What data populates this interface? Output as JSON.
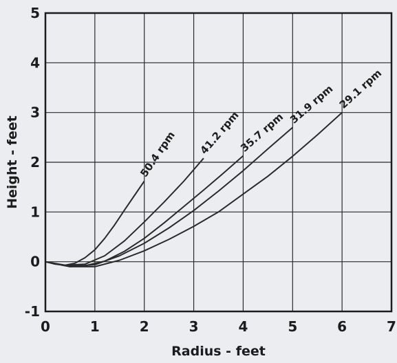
{
  "chart_data": {
    "type": "line",
    "title": "",
    "xlabel": "Radius - feet",
    "ylabel": "Height - feet",
    "xlim": [
      0,
      7
    ],
    "ylim": [
      -1,
      5
    ],
    "x_ticks": [
      0,
      1,
      2,
      3,
      4,
      5,
      6,
      7
    ],
    "y_ticks": [
      -1,
      0,
      1,
      2,
      3,
      4,
      5
    ],
    "grid": true,
    "legend": "none",
    "line_color": "#2a2a2a",
    "background_color": "#ecedf0",
    "series": [
      {
        "name": "50.4 rpm",
        "x": [
          0,
          0.2,
          0.4,
          0.6,
          0.8,
          1.0,
          1.2,
          1.4,
          1.6,
          1.8,
          2.0
        ],
        "y": [
          0,
          -0.05,
          -0.07,
          -0.03,
          0.08,
          0.24,
          0.47,
          0.74,
          1.04,
          1.33,
          1.62
        ]
      },
      {
        "name": "41.2 rpm",
        "x": [
          0,
          0.4,
          0.8,
          1.2,
          1.6,
          2.0,
          2.4,
          2.8,
          3.2
        ],
        "y": [
          0,
          -0.07,
          -0.05,
          0.12,
          0.42,
          0.8,
          1.2,
          1.62,
          2.08
        ]
      },
      {
        "name": "35.7 rpm",
        "x": [
          0,
          0.4,
          0.8,
          1.2,
          1.6,
          2.0,
          2.4,
          2.8,
          3.2,
          3.6,
          4.0
        ],
        "y": [
          0,
          -0.08,
          -0.08,
          0.01,
          0.21,
          0.47,
          0.78,
          1.11,
          1.44,
          1.78,
          2.13
        ]
      },
      {
        "name": "31.9 rpm",
        "x": [
          0,
          0.5,
          1.0,
          1.5,
          2.0,
          2.5,
          3.0,
          3.5,
          4.0,
          4.5,
          5.0
        ],
        "y": [
          0,
          -0.1,
          -0.06,
          0.12,
          0.37,
          0.68,
          1.03,
          1.42,
          1.83,
          2.27,
          2.7
        ]
      },
      {
        "name": "29.1 rpm",
        "x": [
          0,
          0.5,
          1.0,
          1.5,
          2.0,
          2.5,
          3.0,
          3.5,
          4.0,
          4.5,
          5.0,
          5.5,
          6.0
        ],
        "y": [
          0,
          -0.1,
          -0.1,
          0.03,
          0.22,
          0.45,
          0.71,
          1.0,
          1.36,
          1.72,
          2.12,
          2.55,
          3.0
        ]
      }
    ]
  }
}
